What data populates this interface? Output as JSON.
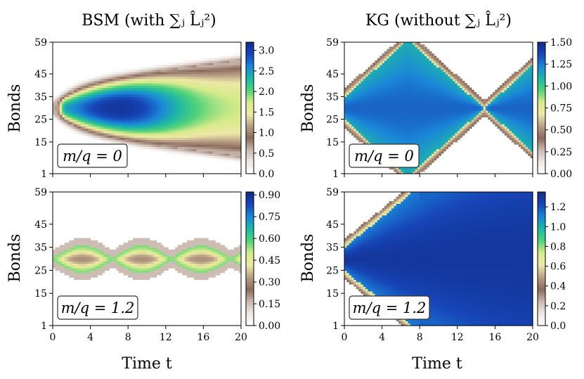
{
  "figure": {
    "column_titles": [
      "BSM (with ∑ⱼ L̂ⱼ²)",
      "KG (without ∑ⱼ L̂ⱼ²)"
    ],
    "ylabel": "Bonds",
    "xlabel": "Time t"
  },
  "colormap": [
    "#ffffff",
    "#efe9e6",
    "#cbbab1",
    "#8c6b5c",
    "#b89f86",
    "#eee8a8",
    "#d7ea8a",
    "#52d27a",
    "#1fb7a6",
    "#1b87d8",
    "#1746b8",
    "#112d8a"
  ],
  "chart_data": [
    {
      "type": "heatmap",
      "panel": "top-left",
      "annotation": "m/q = 0",
      "xlabel": "",
      "ylabel": "Bonds",
      "xlim": [
        0,
        20
      ],
      "ylim": [
        1,
        59
      ],
      "xticks": [
        "0",
        "4",
        "8",
        "12",
        "16",
        "20"
      ],
      "yticks": [
        "1",
        "15",
        "25",
        "35",
        "45",
        "59"
      ],
      "colorbar": {
        "min": 0.0,
        "max": 3.2,
        "ticks": [
          "0.0",
          "0.5",
          "1.0",
          "1.5",
          "2.0",
          "2.5",
          "3.0"
        ],
        "tick_values": [
          0,
          0.5,
          1.0,
          1.5,
          2.0,
          2.5,
          3.0
        ]
      },
      "pattern": "expanding-plume",
      "peak": 3.1
    },
    {
      "type": "heatmap",
      "panel": "top-right",
      "annotation": "m/q = 0",
      "xlabel": "",
      "ylabel": "Bonds",
      "xlim": [
        0,
        20
      ],
      "ylim": [
        1,
        59
      ],
      "xticks": [
        "0",
        "4",
        "8",
        "12",
        "16",
        "20"
      ],
      "yticks": [
        "1",
        "15",
        "25",
        "35",
        "45",
        "59"
      ],
      "colorbar": {
        "min": 0.0,
        "max": 1.5,
        "ticks": [
          "0.00",
          "0.25",
          "0.50",
          "0.75",
          "1.00",
          "1.25",
          "1.50"
        ],
        "tick_values": [
          0,
          0.25,
          0.5,
          0.75,
          1.0,
          1.25,
          1.5
        ]
      },
      "pattern": "light-cone-reflect",
      "peak": 1.3
    },
    {
      "type": "heatmap",
      "panel": "bottom-left",
      "annotation": "m/q = 1.2",
      "xlabel": "Time t",
      "ylabel": "Bonds",
      "xlim": [
        0,
        20
      ],
      "ylim": [
        1,
        59
      ],
      "xticks": [
        "0",
        "4",
        "8",
        "12",
        "16",
        "20"
      ],
      "yticks": [
        "1",
        "15",
        "25",
        "35",
        "45",
        "59"
      ],
      "colorbar": {
        "min": 0.0,
        "max": 0.92,
        "ticks": [
          "0.00",
          "0.15",
          "0.30",
          "0.45",
          "0.60",
          "0.75",
          "0.90"
        ],
        "tick_values": [
          0,
          0.15,
          0.3,
          0.45,
          0.6,
          0.75,
          0.9
        ]
      },
      "pattern": "confined-oscillation",
      "peak": 0.65
    },
    {
      "type": "heatmap",
      "panel": "bottom-right",
      "annotation": "m/q = 1.2",
      "xlabel": "Time t",
      "ylabel": "Bonds",
      "xlim": [
        0,
        20
      ],
      "ylim": [
        1,
        59
      ],
      "xticks": [
        "0",
        "4",
        "8",
        "12",
        "16",
        "20"
      ],
      "yticks": [
        "1",
        "15",
        "25",
        "35",
        "45",
        "59"
      ],
      "colorbar": {
        "min": 0.0,
        "max": 1.35,
        "ticks": [
          "0.0",
          "0.2",
          "0.4",
          "0.6",
          "0.8",
          "1.0",
          "1.2"
        ],
        "tick_values": [
          0,
          0.2,
          0.4,
          0.6,
          0.8,
          1.0,
          1.2
        ]
      },
      "pattern": "light-cone-wide",
      "peak": 1.3
    }
  ]
}
